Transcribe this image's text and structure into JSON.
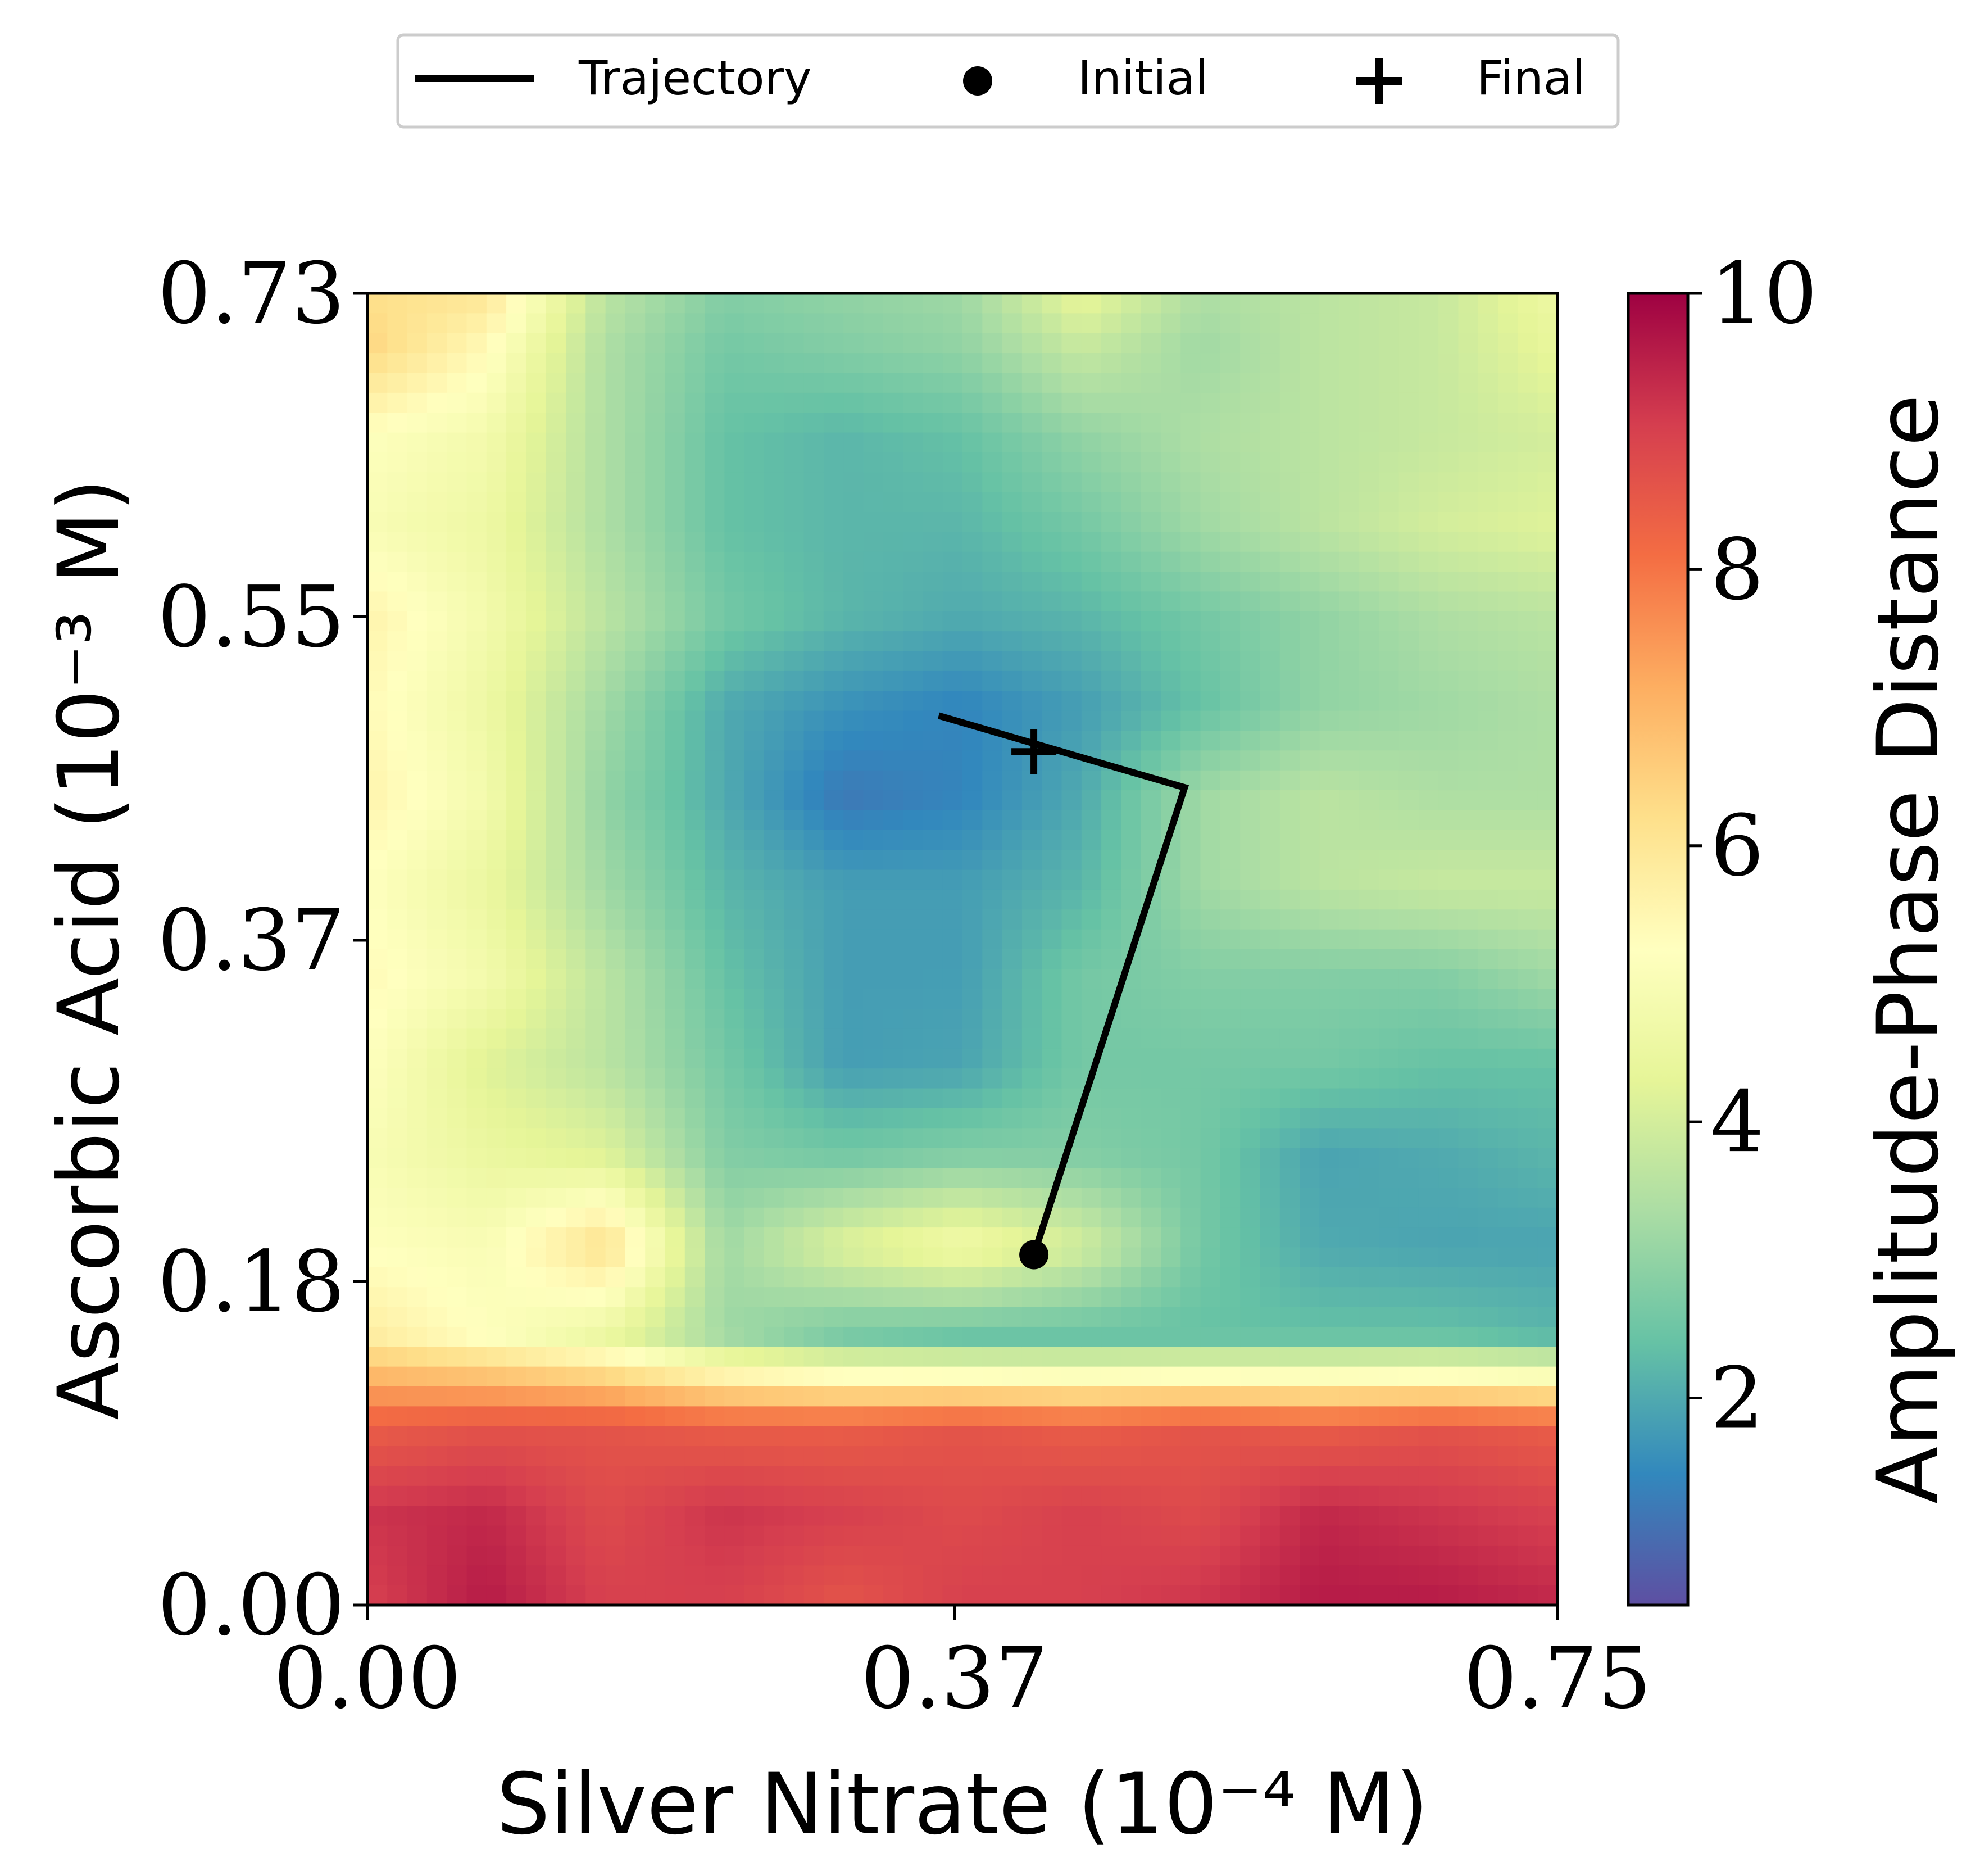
{
  "chart_data": {
    "type": "heatmap",
    "x_label": "Silver Nitrate (10⁻⁴ M)",
    "y_label": "Ascorbic Acid (10⁻³ M)",
    "colorbar_label": "Amplitude-Phase Distance",
    "x_range": [
      0.0,
      0.75
    ],
    "y_range": [
      0.0,
      0.73
    ],
    "x_ticks": [
      0.0,
      0.37,
      0.75
    ],
    "x_tick_labels": [
      "0.00",
      "0.37",
      "0.75"
    ],
    "y_ticks": [
      0.0,
      0.18,
      0.37,
      0.55,
      0.73
    ],
    "y_tick_labels": [
      "0.00",
      "0.18",
      "0.37",
      "0.55",
      "0.73"
    ],
    "colorbar_range": [
      0.5,
      10
    ],
    "colorbar_ticks": [
      2,
      4,
      6,
      8,
      10
    ],
    "colorbar_tick_labels": [
      "2",
      "4",
      "6",
      "8",
      "10"
    ],
    "colormap": "Spectral_r",
    "colormap_stops": [
      "#5e4fa2",
      "#3288bd",
      "#66c2a5",
      "#abdda4",
      "#e6f598",
      "#ffffbf",
      "#fee08b",
      "#fdae61",
      "#f46d43",
      "#d53e4f",
      "#9e0142"
    ],
    "grid_x": [
      0.0,
      0.075,
      0.15,
      0.225,
      0.3,
      0.375,
      0.45,
      0.525,
      0.6,
      0.675,
      0.75
    ],
    "grid_y": [
      0.0,
      0.05,
      0.1,
      0.15,
      0.2,
      0.25,
      0.3,
      0.35,
      0.4,
      0.45,
      0.5,
      0.55,
      0.6,
      0.65,
      0.7,
      0.73
    ],
    "grid_values": [
      [
        9.0,
        9.6,
        9.0,
        9.0,
        8.6,
        9.0,
        9.0,
        9.2,
        9.6,
        9.6,
        9.4
      ],
      [
        9.2,
        9.4,
        8.8,
        9.2,
        9.0,
        8.8,
        9.0,
        8.8,
        9.4,
        9.2,
        9.0
      ],
      [
        8.4,
        8.6,
        8.6,
        8.4,
        8.4,
        8.6,
        8.4,
        8.6,
        8.4,
        8.6,
        8.4
      ],
      [
        5.8,
        5.2,
        4.5,
        3.2,
        2.6,
        2.4,
        2.4,
        2.4,
        2.4,
        2.4,
        2.2
      ],
      [
        5.2,
        5.0,
        6.2,
        3.2,
        4.2,
        4.8,
        4.0,
        2.6,
        2.0,
        1.9,
        1.9
      ],
      [
        5.0,
        4.5,
        4.2,
        2.8,
        2.6,
        2.8,
        2.8,
        2.6,
        1.9,
        2.0,
        2.2
      ],
      [
        5.2,
        4.2,
        3.6,
        2.6,
        1.8,
        1.9,
        2.6,
        2.6,
        2.6,
        2.4,
        2.4
      ],
      [
        5.4,
        4.8,
        3.6,
        2.4,
        1.8,
        1.8,
        2.6,
        2.8,
        2.8,
        2.8,
        3.2
      ],
      [
        5.2,
        4.5,
        3.2,
        2.2,
        1.8,
        1.8,
        2.2,
        3.2,
        3.6,
        3.8,
        3.8
      ],
      [
        5.6,
        4.8,
        3.0,
        2.0,
        1.2,
        1.4,
        2.0,
        3.2,
        3.6,
        3.4,
        3.4
      ],
      [
        5.4,
        4.6,
        3.2,
        2.0,
        1.6,
        1.4,
        1.8,
        2.4,
        3.0,
        3.2,
        3.4
      ],
      [
        5.6,
        4.8,
        3.6,
        2.6,
        2.2,
        2.0,
        2.2,
        2.6,
        3.0,
        3.4,
        3.6
      ],
      [
        5.0,
        4.6,
        3.4,
        2.4,
        2.2,
        2.2,
        2.6,
        3.2,
        3.6,
        4.0,
        4.2
      ],
      [
        5.2,
        4.8,
        3.4,
        2.4,
        2.2,
        2.4,
        3.0,
        3.4,
        3.6,
        3.8,
        4.0
      ],
      [
        6.4,
        5.4,
        3.4,
        2.6,
        2.8,
        3.0,
        3.8,
        3.2,
        3.6,
        3.8,
        4.4
      ],
      [
        6.2,
        6.0,
        3.6,
        2.8,
        3.0,
        3.2,
        4.4,
        3.4,
        3.6,
        3.8,
        4.6
      ]
    ],
    "series": [
      {
        "name": "Trajectory",
        "x": [
          0.42,
          0.515,
          0.36
        ],
        "y": [
          0.195,
          0.455,
          0.495
        ],
        "style": "line",
        "color": "#000000"
      }
    ],
    "initial": {
      "name": "Initial",
      "x": 0.42,
      "y": 0.195,
      "marker": "circle"
    },
    "final": {
      "name": "Final",
      "x": 0.42,
      "y": 0.475,
      "marker": "plus"
    },
    "legend": {
      "position": "top-center",
      "entries": [
        "Trajectory",
        "Initial",
        "Final"
      ]
    },
    "grid": false
  }
}
